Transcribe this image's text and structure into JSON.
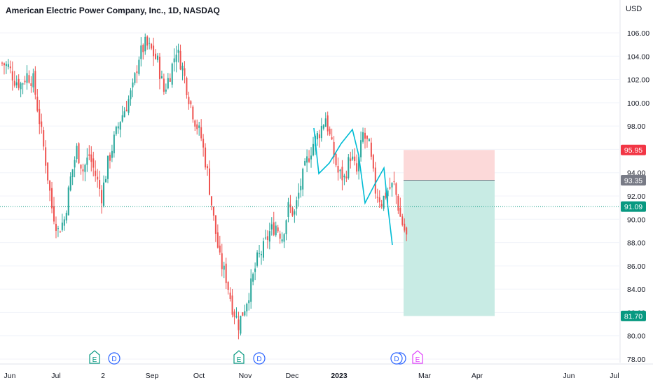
{
  "header": {
    "title": "American Electric Power Company, Inc., 1D, NASDAQ",
    "currency": "USD"
  },
  "colors": {
    "up": "#26a69a",
    "down": "#ef5350",
    "pattern_line": "#00bcd4",
    "stop_zone": "#fcd9d9",
    "target_zone": "#c8ebe4",
    "last_price": "#089981",
    "stop_tag": "#f23645",
    "entry_tag": "#787b86",
    "target_tag": "#089981",
    "earnings": "#089981",
    "dividend": "#2962ff",
    "future_earnings": "#e040fb"
  },
  "chart_data": {
    "type": "candlestick",
    "title": "American Electric Power Company, Inc., 1D, NASDAQ",
    "ylim": [
      77.7,
      107.2
    ],
    "y_ticks": [
      "106.00",
      "104.00",
      "102.00",
      "100.00",
      "98.00",
      "96.00",
      "94.00",
      "92.00",
      "90.00",
      "88.00",
      "86.00",
      "84.00",
      "82.00",
      "80.00",
      "78.00"
    ],
    "x_ticks": [
      "Jun",
      "Jul",
      "2",
      "Sep",
      "Oct",
      "Nov",
      "Dec",
      "2023",
      "Mar",
      "Apr",
      "Jun",
      "Jul"
    ],
    "close_path": [
      [
        0,
        103.4
      ],
      [
        3,
        103.1
      ],
      [
        6,
        102.0
      ],
      [
        9,
        101.6
      ],
      [
        12,
        102.4
      ],
      [
        15,
        101.9
      ],
      [
        18,
        98.5
      ],
      [
        21,
        95.0
      ],
      [
        24,
        91.0
      ],
      [
        27,
        89.0
      ],
      [
        30,
        90.0
      ],
      [
        33,
        93.5
      ],
      [
        36,
        96.0
      ],
      [
        39,
        94.2
      ],
      [
        42,
        95.5
      ],
      [
        45,
        93.8
      ],
      [
        48,
        92.0
      ],
      [
        51,
        94.8
      ],
      [
        54,
        96.8
      ],
      [
        57,
        98.6
      ],
      [
        60,
        99.8
      ],
      [
        63,
        101.2
      ],
      [
        66,
        104.0
      ],
      [
        69,
        105.0
      ],
      [
        72,
        104.5
      ],
      [
        75,
        103.5
      ],
      [
        78,
        101.0
      ],
      [
        81,
        102.5
      ],
      [
        84,
        104.6
      ],
      [
        87,
        103.0
      ],
      [
        90,
        100.5
      ],
      [
        93,
        98.5
      ],
      [
        96,
        97.0
      ],
      [
        99,
        94.0
      ],
      [
        102,
        90.0
      ],
      [
        105,
        86.5
      ],
      [
        108,
        85.0
      ],
      [
        111,
        82.5
      ],
      [
        114,
        81.0
      ],
      [
        117,
        82.5
      ],
      [
        120,
        84.3
      ],
      [
        123,
        86.5
      ],
      [
        126,
        87.5
      ],
      [
        129,
        88.9
      ],
      [
        132,
        89.5
      ],
      [
        135,
        88.5
      ],
      [
        138,
        91.0
      ],
      [
        141,
        90.5
      ],
      [
        144,
        93.0
      ],
      [
        147,
        95.0
      ],
      [
        150,
        96.5
      ],
      [
        153,
        97.5
      ],
      [
        156,
        98.8
      ],
      [
        159,
        96.2
      ],
      [
        162,
        94.0
      ],
      [
        165,
        93.5
      ],
      [
        168,
        95.5
      ],
      [
        171,
        94.0
      ],
      [
        174,
        97.3
      ],
      [
        177,
        96.2
      ],
      [
        180,
        92.5
      ],
      [
        183,
        91.5
      ],
      [
        186,
        92.5
      ],
      [
        189,
        93.0
      ],
      [
        192,
        90.2
      ],
      [
        195,
        88.5
      ]
    ],
    "last_price": 91.09,
    "position": {
      "stop": 95.95,
      "entry": 93.35,
      "target": 81.7
    },
    "events": [
      "E",
      "D",
      "E",
      "D",
      "D",
      "E"
    ]
  }
}
